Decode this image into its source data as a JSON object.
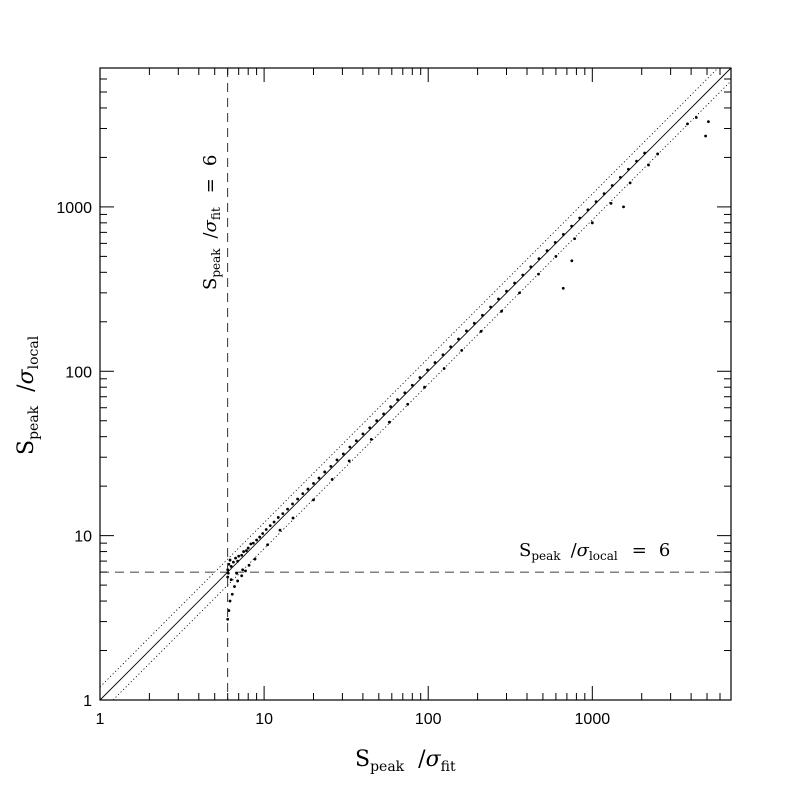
{
  "chart_data": {
    "type": "scatter",
    "title": "",
    "xlabel": {
      "main": "S",
      "sub1": "peak",
      "slash": "/",
      "sigma": "σ",
      "sub2": "fit"
    },
    "ylabel": {
      "main": "S",
      "sub1": "peak",
      "slash": "/",
      "sigma": "σ",
      "sub2": "local"
    },
    "xscale": "log",
    "yscale": "log",
    "xlim": [
      1,
      7000
    ],
    "ylim": [
      1,
      7000
    ],
    "xticks": [
      1,
      10,
      100,
      1000
    ],
    "yticks": [
      1,
      10,
      100,
      1000
    ],
    "xtick_labels": [
      "1",
      "10",
      "100",
      "1000"
    ],
    "ytick_labels": [
      "1",
      "10",
      "100",
      "1000"
    ],
    "grid": false,
    "reference_lines": [
      {
        "kind": "one-to-one",
        "style": "solid",
        "factor": 1
      },
      {
        "kind": "upper-bound",
        "style": "dotted",
        "factor": 1.2
      },
      {
        "kind": "lower-bound",
        "style": "dotted",
        "factor": 0.833
      }
    ],
    "thresholds": {
      "vertical": {
        "x": 6,
        "style": "dashed",
        "label": {
          "main": "S",
          "sub1": "peak",
          "slash": "/",
          "sigma": "σ",
          "sub2": "fit",
          "eq": "=",
          "value": "6"
        }
      },
      "horizontal": {
        "y": 6,
        "style": "dashed",
        "label": {
          "main": "S",
          "sub1": "peak",
          "slash": "/",
          "sigma": "σ",
          "sub2": "local",
          "eq": "=",
          "value": "6"
        }
      }
    },
    "points": [
      [
        6.0,
        6.2
      ],
      [
        6.1,
        6.7
      ],
      [
        6.2,
        7.1
      ],
      [
        6.3,
        6.5
      ],
      [
        6.5,
        6.9
      ],
      [
        6.7,
        7.3
      ],
      [
        6.9,
        7.0
      ],
      [
        7.0,
        7.5
      ],
      [
        7.3,
        7.6
      ],
      [
        7.5,
        8.0
      ],
      [
        7.8,
        8.1
      ],
      [
        8.0,
        8.4
      ],
      [
        8.3,
        8.9
      ],
      [
        8.6,
        9.0
      ],
      [
        9.0,
        9.4
      ],
      [
        9.4,
        9.8
      ],
      [
        9.8,
        10.3
      ],
      [
        10.3,
        10.9
      ],
      [
        10.9,
        11.5
      ],
      [
        11.5,
        12.1
      ],
      [
        12.2,
        12.9
      ],
      [
        13.0,
        13.6
      ],
      [
        13.9,
        14.5
      ],
      [
        14.9,
        15.6
      ],
      [
        16.0,
        16.7
      ],
      [
        17.2,
        18.0
      ],
      [
        18.5,
        19.2
      ],
      [
        20.0,
        20.8
      ],
      [
        21.6,
        22.4
      ],
      [
        23.4,
        24.4
      ],
      [
        25.5,
        26.4
      ],
      [
        27.8,
        28.9
      ],
      [
        30.4,
        31.4
      ],
      [
        33.3,
        34.6
      ],
      [
        36.5,
        37.8
      ],
      [
        40.0,
        41.6
      ],
      [
        44.0,
        45.3
      ],
      [
        48.5,
        50.1
      ],
      [
        53.5,
        55.0
      ],
      [
        59.0,
        60.9
      ],
      [
        65.0,
        67.2
      ],
      [
        72.0,
        74.0
      ],
      [
        80.0,
        82.2
      ],
      [
        89.0,
        91.6
      ],
      [
        99.0,
        102.0
      ],
      [
        110.0,
        113.0
      ],
      [
        123.0,
        126.0
      ],
      [
        137.0,
        141.0
      ],
      [
        153.0,
        157.0
      ],
      [
        171.0,
        176.0
      ],
      [
        191.0,
        196.0
      ],
      [
        214.0,
        219.0
      ],
      [
        240.0,
        246.0
      ],
      [
        268.0,
        275.0
      ],
      [
        300.0,
        307.0
      ],
      [
        336.0,
        344.0
      ],
      [
        377.0,
        385.0
      ],
      [
        422.0,
        432.0
      ],
      [
        473.0,
        484.0
      ],
      [
        530.0,
        542.0
      ],
      [
        594.0,
        608.0
      ],
      [
        666.0,
        680.0
      ],
      [
        748.0,
        764.0
      ],
      [
        838.0,
        856.0
      ],
      [
        940.0,
        960.0
      ],
      [
        1054.0,
        1076.0
      ],
      [
        1180.0,
        1205.0
      ],
      [
        1322.0,
        1350.0
      ],
      [
        1482.0,
        1512.0
      ],
      [
        1660.0,
        1694.0
      ],
      [
        1860.0,
        1898.0
      ],
      [
        2084.0,
        2126.0
      ],
      [
        6.0,
        3.1
      ],
      [
        6.1,
        3.5
      ],
      [
        6.2,
        4.0
      ],
      [
        6.4,
        4.4
      ],
      [
        6.6,
        4.9
      ],
      [
        6.9,
        5.3
      ],
      [
        7.3,
        5.7
      ],
      [
        7.7,
        6.1
      ],
      [
        8.1,
        6.6
      ],
      [
        6.0,
        5.6
      ],
      [
        6.05,
        5.9
      ],
      [
        6.3,
        5.4
      ],
      [
        6.8,
        5.9
      ],
      [
        7.4,
        6.2
      ],
      [
        8.8,
        7.2
      ],
      [
        10.5,
        8.8
      ],
      [
        12.5,
        10.8
      ],
      [
        15.0,
        12.8
      ],
      [
        20.0,
        16.5
      ],
      [
        26.0,
        22.0
      ],
      [
        33.0,
        28.5
      ],
      [
        45.0,
        38.5
      ],
      [
        58.0,
        49.0
      ],
      [
        75.0,
        63.0
      ],
      [
        95.0,
        80.0
      ],
      [
        125.0,
        104.0
      ],
      [
        160.0,
        134.0
      ],
      [
        210.0,
        175.0
      ],
      [
        280.0,
        232.0
      ],
      [
        360.0,
        300.0
      ],
      [
        470.0,
        390.0
      ],
      [
        600.0,
        500.0
      ],
      [
        780.0,
        640.0
      ],
      [
        1000.0,
        800.0
      ],
      [
        1300.0,
        1050.0
      ],
      [
        1700.0,
        1400.0
      ],
      [
        2200.0,
        1800.0
      ],
      [
        665.0,
        320.0
      ],
      [
        750.0,
        470.0
      ],
      [
        1550.0,
        1000.0
      ],
      [
        2500.0,
        2100.0
      ],
      [
        3800.0,
        3200.0
      ],
      [
        4300.0,
        3500.0
      ],
      [
        4900.0,
        2700.0
      ],
      [
        5100.0,
        3300.0
      ]
    ]
  }
}
